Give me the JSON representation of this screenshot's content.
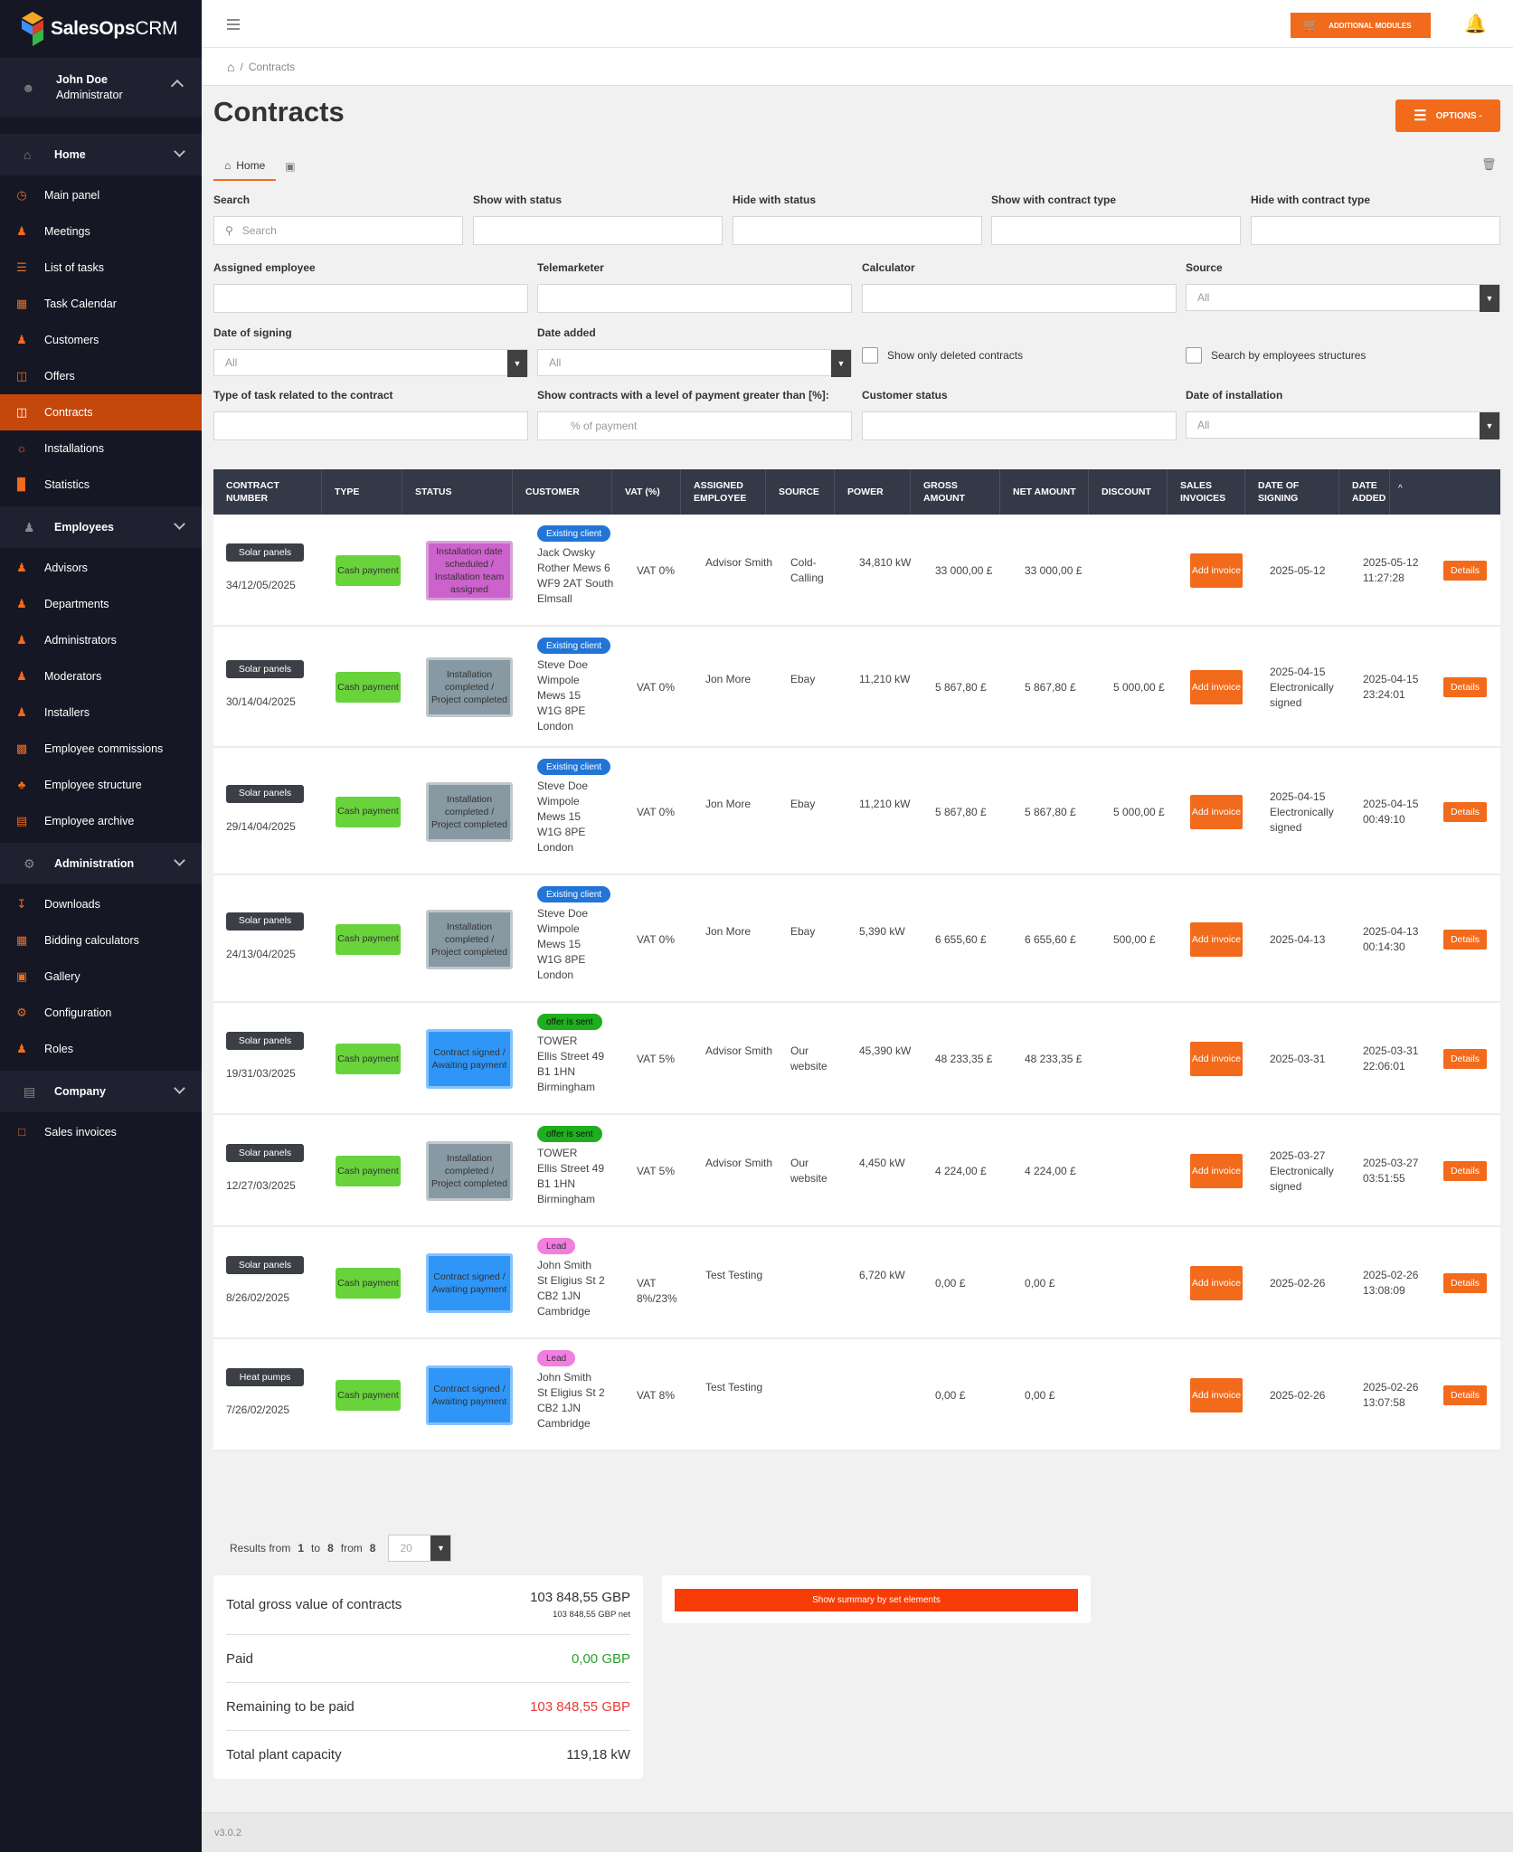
{
  "app": {
    "logo_bold": "SalesOps",
    "logo_light": "CRM"
  },
  "user": {
    "name": "John Doe",
    "role": "Administrator"
  },
  "sidebar": {
    "home": "Home",
    "home_items": [
      "Main panel",
      "Meetings",
      "List of tasks",
      "Task Calendar",
      "Customers",
      "Offers",
      "Contracts",
      "Installations",
      "Statistics"
    ],
    "employees": "Employees",
    "employee_items": [
      "Advisors",
      "Departments",
      "Administrators",
      "Moderators",
      "Installers",
      "Employee commissions",
      "Employee structure",
      "Employee archive"
    ],
    "administration": "Administration",
    "admin_items": [
      "Downloads",
      "Bidding calculators",
      "Gallery",
      "Configuration",
      "Roles"
    ],
    "company": "Company",
    "company_items": [
      "Sales invoices"
    ]
  },
  "topbar": {
    "additional_modules": "ADDITIONAL MODULES"
  },
  "breadcrumb": {
    "sep": "/",
    "current": "Contracts"
  },
  "page": {
    "title": "Contracts",
    "options": "OPTIONS -",
    "tab_home": "Home"
  },
  "filters": {
    "search": {
      "label": "Search",
      "placeholder": "Search"
    },
    "show_status": "Show with status",
    "hide_status": "Hide with status",
    "show_type": "Show with contract type",
    "hide_type": "Hide with contract type",
    "assigned_employee": "Assigned employee",
    "telemarketer": "Telemarketer",
    "calculator": "Calculator",
    "source": {
      "label": "Source",
      "value": "All"
    },
    "date_signing": {
      "label": "Date of signing",
      "value": "All"
    },
    "date_added": {
      "label": "Date added",
      "value": "All"
    },
    "show_deleted": "Show only deleted contracts",
    "search_structures": "Search by employees structures",
    "task_type": "Type of task related to the contract",
    "payment_level": {
      "label": "Show contracts with a level of payment greater than [%]:",
      "placeholder": "% of payment"
    },
    "customer_status": "Customer status",
    "date_installation": {
      "label": "Date of installation",
      "value": "All"
    }
  },
  "table": {
    "headers": [
      "CONTRACT NUMBER",
      "TYPE",
      "STATUS",
      "CUSTOMER",
      "VAT (%)",
      "ASSIGNED EMPLOYEE",
      "SOURCE",
      "POWER",
      "GROSS AMOUNT",
      "NET AMOUNT",
      "DISCOUNT",
      "SALES INVOICES",
      "DATE OF SIGNING",
      "DATE ADDED"
    ],
    "sort_icon": "^",
    "add_invoice": "Add invoice",
    "details": "Details",
    "rows": [
      {
        "product": "Solar panels",
        "number": "34/12/05/2025",
        "payment": "Cash payment",
        "status": "Installation date scheduled / Installation team assigned",
        "status_color": "pink",
        "tag": "Existing client",
        "tag_type": "ex",
        "customer": [
          "Jack Owsky",
          "Rother Mews 6",
          "WF9 2AT South",
          "Elmsall"
        ],
        "vat": "VAT 0%",
        "employee": "Advisor Smith",
        "source": "Cold-Calling",
        "power": "34,810 kW",
        "gross": "33 000,00 £",
        "net": "33 000,00 £",
        "discount": "",
        "signing": "2025-05-12",
        "added": "2025-05-12 11:27:28"
      },
      {
        "product": "Solar panels",
        "number": "30/14/04/2025",
        "payment": "Cash payment",
        "status": "Installation completed / Project completed",
        "status_color": "grey",
        "tag": "Existing client",
        "tag_type": "ex",
        "customer": [
          "Steve Doe",
          "Wimpole",
          "Mews 15",
          "W1G 8PE",
          "London"
        ],
        "vat": "VAT 0%",
        "employee": "Jon More",
        "source": "Ebay",
        "power": "11,210 kW",
        "gross": "5 867,80 £",
        "net": "5 867,80 £",
        "discount": "5 000,00 £",
        "signing": "2025-04-15 Electronically signed",
        "added": "2025-04-15 23:24:01"
      },
      {
        "product": "Solar panels",
        "number": "29/14/04/2025",
        "payment": "Cash payment",
        "status": "Installation completed / Project completed",
        "status_color": "grey",
        "tag": "Existing client",
        "tag_type": "ex",
        "customer": [
          "Steve Doe",
          "Wimpole",
          "Mews 15",
          "W1G 8PE",
          "London"
        ],
        "vat": "VAT 0%",
        "employee": "Jon More",
        "source": "Ebay",
        "power": "11,210 kW",
        "gross": "5 867,80 £",
        "net": "5 867,80 £",
        "discount": "5 000,00 £",
        "signing": "2025-04-15 Electronically signed",
        "added": "2025-04-15 00:49:10"
      },
      {
        "product": "Solar panels",
        "number": "24/13/04/2025",
        "payment": "Cash payment",
        "status": "Installation completed / Project completed",
        "status_color": "grey",
        "tag": "Existing client",
        "tag_type": "ex",
        "customer": [
          "Steve Doe",
          "Wimpole",
          "Mews 15",
          "W1G 8PE",
          "London"
        ],
        "vat": "VAT 0%",
        "employee": "Jon More",
        "source": "Ebay",
        "power": "5,390 kW",
        "gross": "6 655,60 £",
        "net": "6 655,60 £",
        "discount": "500,00 £",
        "signing": "2025-04-13",
        "added": "2025-04-13 00:14:30"
      },
      {
        "product": "Solar panels",
        "number": "19/31/03/2025",
        "payment": "Cash payment",
        "status": "Contract signed / Awaiting payment",
        "status_color": "blue",
        "tag": "offer is sent",
        "tag_type": "of",
        "customer": [
          "TOWER",
          "Ellis Street 49",
          "B1 1HN",
          "Birmingham"
        ],
        "vat": "VAT 5%",
        "employee": "Advisor Smith",
        "source": "Our website",
        "power": "45,390 kW",
        "gross": "48 233,35 £",
        "net": "48 233,35 £",
        "discount": "",
        "signing": "2025-03-31",
        "added": "2025-03-31 22:06:01"
      },
      {
        "product": "Solar panels",
        "number": "12/27/03/2025",
        "payment": "Cash payment",
        "status": "Installation completed / Project completed",
        "status_color": "grey",
        "tag": "offer is sent",
        "tag_type": "of",
        "customer": [
          "TOWER",
          "Ellis Street 49",
          "B1 1HN",
          "Birmingham"
        ],
        "vat": "VAT 5%",
        "employee": "Advisor Smith",
        "source": "Our website",
        "power": "4,450 kW",
        "gross": "4 224,00 £",
        "net": "4 224,00 £",
        "discount": "",
        "signing": "2025-03-27 Electronically signed",
        "added": "2025-03-27 03:51:55"
      },
      {
        "product": "Solar panels",
        "number": "8/26/02/2025",
        "payment": "Cash payment",
        "status": "Contract signed / Awaiting payment",
        "status_color": "blue",
        "tag": "Lead",
        "tag_type": "ld",
        "customer": [
          "John Smith",
          "St Eligius St 2",
          "CB2 1JN",
          "Cambridge"
        ],
        "vat": "VAT 8%/23%",
        "employee": "Test Testing",
        "source": "",
        "power": "6,720 kW",
        "gross": "0,00 £",
        "net": "0,00 £",
        "discount": "",
        "signing": "2025-02-26",
        "added": "2025-02-26 13:08:09"
      },
      {
        "product": "Heat pumps",
        "number": "7/26/02/2025",
        "payment": "Cash payment",
        "status": "Contract signed / Awaiting payment",
        "status_color": "blue",
        "tag": "Lead",
        "tag_type": "ld",
        "customer": [
          "John Smith",
          "St Eligius St 2",
          "CB2 1JN",
          "Cambridge"
        ],
        "vat": "VAT 8%",
        "employee": "Test Testing",
        "source": "",
        "power": "",
        "gross": "0,00 £",
        "net": "0,00 £",
        "discount": "",
        "signing": "2025-02-26",
        "added": "2025-02-26 13:07:58"
      }
    ]
  },
  "pager": {
    "results_prefix": "Results from",
    "from": "1",
    "to_word": "to",
    "to": "8",
    "from_word": "from",
    "total": "8",
    "per_page": "20"
  },
  "summary": {
    "gross_label": "Total gross value of contracts",
    "gross_value": "103 848,55 GBP",
    "gross_net": "103 848,55 GBP net",
    "paid_label": "Paid",
    "paid_value": "0,00 GBP",
    "remaining_label": "Remaining to be paid",
    "remaining_value": "103 848,55 GBP",
    "capacity_label": "Total plant capacity",
    "capacity_value": "119,18 kW",
    "show_button": "Show summary by set elements"
  },
  "colors": {
    "accent": "#f26a1b",
    "paid": "#2aa12a",
    "remaining": "#e53935"
  },
  "footer": {
    "version": "v3.0.2"
  }
}
